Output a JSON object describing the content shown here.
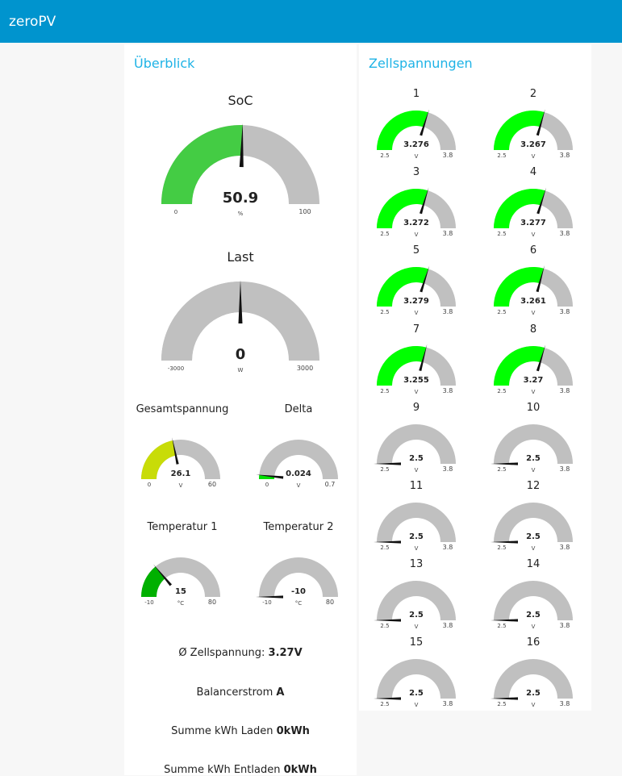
{
  "app": {
    "title": "zeroPV"
  },
  "overview": {
    "title": "Überblick",
    "soc": {
      "label": "SoC",
      "value": "50.9",
      "unit": "%",
      "min": "0",
      "max": "100",
      "fraction": 0.509,
      "color": "#44cc44"
    },
    "last": {
      "label": "Last",
      "value": "0",
      "unit": "W",
      "min": "-3000",
      "max": "3000",
      "fraction": 0.5,
      "color": "#c0c0c0"
    },
    "gesamtspannung": {
      "label": "Gesamtspannung",
      "value": "26.1",
      "unit": "V",
      "min": "0",
      "max": "60",
      "fraction": 0.435,
      "color": "#c8dc08"
    },
    "delta": {
      "label": "Delta",
      "value": "0.024",
      "unit": "V",
      "min": "0",
      "max": "0.7",
      "fraction": 0.034,
      "color": "#00e000"
    },
    "temp1": {
      "label": "Temperatur 1",
      "value": "15",
      "unit": "°C",
      "min": "-10",
      "max": "80",
      "fraction": 0.278,
      "color": "#00b000"
    },
    "temp2": {
      "label": "Temperatur 2",
      "value": "-10",
      "unit": "°C",
      "min": "-10",
      "max": "80",
      "fraction": 0.0,
      "color": "#c0c0c0"
    },
    "zellspannung": {
      "label": "Ø Zellspannung: ",
      "value": "3.27V"
    },
    "balancer": {
      "label": "Balancerstrom ",
      "value": "A"
    },
    "laden": {
      "label": "Summe kWh Laden ",
      "value": "0kWh"
    },
    "entladen": {
      "label": "Summe kWh Entladen ",
      "value": "0kWh"
    }
  },
  "cells": {
    "title": "Zellspannungen",
    "min": "2.5",
    "max": "3.8",
    "unit": "V",
    "color": "#00ff00",
    "items": [
      {
        "label": "1",
        "value": "3.276",
        "fraction": 0.597
      },
      {
        "label": "2",
        "value": "3.267",
        "fraction": 0.59
      },
      {
        "label": "3",
        "value": "3.272",
        "fraction": 0.594
      },
      {
        "label": "4",
        "value": "3.277",
        "fraction": 0.598
      },
      {
        "label": "5",
        "value": "3.279",
        "fraction": 0.599
      },
      {
        "label": "6",
        "value": "3.261",
        "fraction": 0.585
      },
      {
        "label": "7",
        "value": "3.255",
        "fraction": 0.581
      },
      {
        "label": "8",
        "value": "3.27",
        "fraction": 0.592
      },
      {
        "label": "9",
        "value": "2.5",
        "fraction": 0
      },
      {
        "label": "10",
        "value": "2.5",
        "fraction": 0
      },
      {
        "label": "11",
        "value": "2.5",
        "fraction": 0
      },
      {
        "label": "12",
        "value": "2.5",
        "fraction": 0
      },
      {
        "label": "13",
        "value": "2.5",
        "fraction": 0
      },
      {
        "label": "14",
        "value": "2.5",
        "fraction": 0
      },
      {
        "label": "15",
        "value": "2.5",
        "fraction": 0
      },
      {
        "label": "16",
        "value": "2.5",
        "fraction": 0
      }
    ]
  }
}
